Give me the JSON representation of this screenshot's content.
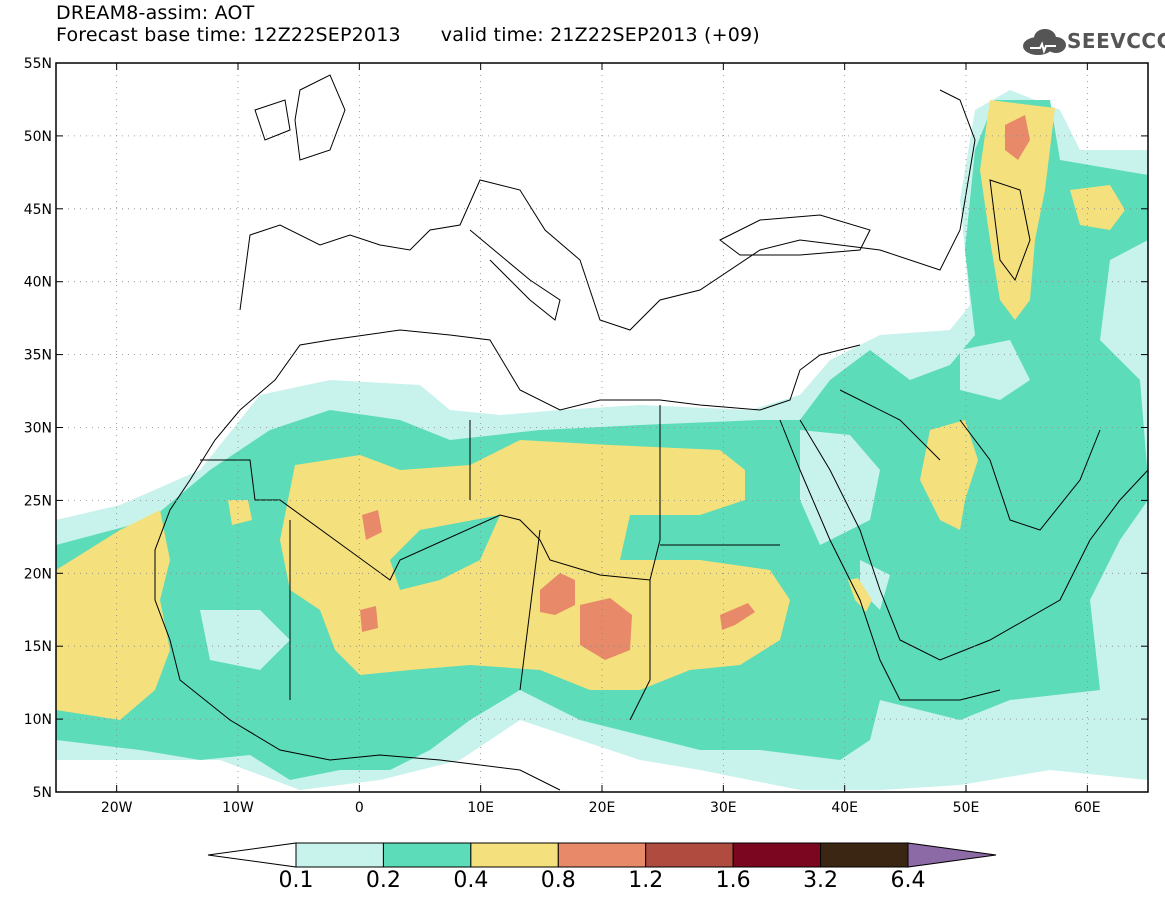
{
  "header": {
    "line1": "DREAM8-assim: AOT",
    "base_time": "Forecast base time: 12Z22SEP2013",
    "valid_time": "valid time: 21Z22SEP2013 (+09)"
  },
  "logo": {
    "text": "SEEVCCC",
    "icon": "cloud-icon"
  },
  "map": {
    "lon_range": [
      -25,
      65
    ],
    "lat_range": [
      5,
      55
    ],
    "lat_labels": [
      "55N",
      "50N",
      "45N",
      "40N",
      "35N",
      "30N",
      "25N",
      "20N",
      "15N",
      "10N",
      "5N"
    ],
    "lon_labels": [
      "20W",
      "10W",
      "0",
      "10E",
      "20E",
      "30E",
      "40E",
      "50E",
      "60E"
    ]
  },
  "colorbar": {
    "levels": [
      "0.1",
      "0.2",
      "0.4",
      "0.8",
      "1.2",
      "1.6",
      "3.2",
      "6.4"
    ],
    "colors": [
      "#c8f2ec",
      "#5cdcb8",
      "#f4e07c",
      "#e8896a",
      "#b04b3f",
      "#7a0620",
      "#3b2614",
      "#8c6aa6"
    ],
    "under_color": "#ffffff"
  }
}
